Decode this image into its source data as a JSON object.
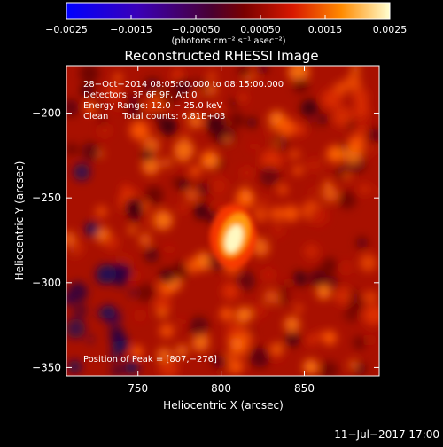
{
  "chart_data": {
    "type": "heatmap",
    "title": "Reconstructed RHESSI Image",
    "xlabel": "Heliocentric X (arcsec)",
    "ylabel": "Heliocentric Y (arcsec)",
    "xlim": [
      707,
      895
    ],
    "ylim": [
      -355,
      -172
    ],
    "xticks": [
      {
        "value": 750,
        "label": "750"
      },
      {
        "value": 800,
        "label": "800"
      },
      {
        "value": 850,
        "label": "850"
      }
    ],
    "yticks": [
      {
        "value": -200,
        "label": "−200"
      },
      {
        "value": -250,
        "label": "−250"
      },
      {
        "value": -300,
        "label": "−300"
      },
      {
        "value": -350,
        "label": "−350"
      }
    ],
    "annotations": [
      "28−Oct−2014 08:05:00.000 to 08:15:00.000",
      "Detectors: 3F 6F 9F, Att 0",
      "Energy Range: 12.0 − 25.0 keV",
      "Clean     Total counts: 6.81E+03"
    ],
    "peak_label": "Position of Peak = [807,−276]",
    "peak": {
      "x": 807,
      "y": -276
    },
    "colorbar": {
      "range": [
        -0.0025,
        0.0025
      ],
      "ticks": [
        {
          "value": -0.0025,
          "label": "−0.0025"
        },
        {
          "value": -0.0015,
          "label": "−0.0015"
        },
        {
          "value": -0.0005,
          "label": "−0.00050"
        },
        {
          "value": 0.0005,
          "label": "0.00050"
        },
        {
          "value": 0.0015,
          "label": "0.0015"
        },
        {
          "value": 0.0025,
          "label": "0.0025"
        }
      ],
      "units": "(photons cm⁻² s⁻¹ asec⁻²)"
    },
    "grid": false
  },
  "footer": {
    "timestamp": "11−Jul−2017 17:00"
  }
}
